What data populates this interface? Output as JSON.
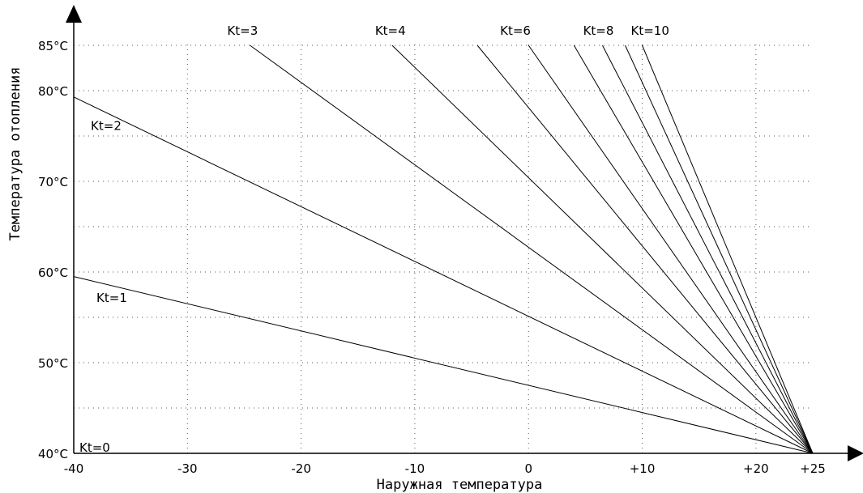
{
  "chart_data": {
    "type": "line",
    "title": "",
    "xlabel": "Наружная температура",
    "ylabel": "Температура отопления",
    "x_ticks": [
      {
        "value": -40,
        "label": "-40"
      },
      {
        "value": -30,
        "label": "-30"
      },
      {
        "value": -20,
        "label": "-20"
      },
      {
        "value": -10,
        "label": "-10"
      },
      {
        "value": 0,
        "label": "0"
      },
      {
        "value": 10,
        "label": "+10"
      },
      {
        "value": 20,
        "label": "+20"
      },
      {
        "value": 25,
        "label": "+25"
      }
    ],
    "y_ticks": [
      {
        "value": 40,
        "label": "40°C"
      },
      {
        "value": 50,
        "label": "50°C"
      },
      {
        "value": 60,
        "label": "60°C"
      },
      {
        "value": 70,
        "label": "70°C"
      },
      {
        "value": 80,
        "label": "80°C"
      },
      {
        "value": 85,
        "label": "85°C"
      }
    ],
    "xlim": [
      -40,
      25
    ],
    "ylim": [
      40,
      85
    ],
    "grid": true,
    "series": [
      {
        "name": "Kt=0",
        "x": [
          -40,
          25
        ],
        "y": [
          40,
          40
        ]
      },
      {
        "name": "Kt=1",
        "x": [
          -40,
          25
        ],
        "y": [
          59.5,
          40
        ]
      },
      {
        "name": "Kt=2",
        "x": [
          -40,
          25
        ],
        "y": [
          79.3,
          40
        ]
      },
      {
        "name": "Kt=3",
        "x": [
          -24.5,
          25
        ],
        "y": [
          85,
          40
        ]
      },
      {
        "name": "Kt=4",
        "x": [
          -12,
          25
        ],
        "y": [
          85,
          40
        ]
      },
      {
        "name": "",
        "x": [
          -4.5,
          25
        ],
        "y": [
          85,
          40
        ]
      },
      {
        "name": "Kt=6",
        "x": [
          0,
          25
        ],
        "y": [
          85,
          40
        ]
      },
      {
        "name": "",
        "x": [
          4,
          25
        ],
        "y": [
          85,
          40
        ]
      },
      {
        "name": "Kt=8",
        "x": [
          6.5,
          25
        ],
        "y": [
          85,
          40
        ]
      },
      {
        "name": "",
        "x": [
          8.5,
          25
        ],
        "y": [
          85,
          40
        ]
      },
      {
        "name": "Kt=10",
        "x": [
          10,
          25
        ],
        "y": [
          85,
          40
        ]
      }
    ],
    "labels": [
      {
        "text": "Kt=0",
        "x": -39.5,
        "y": 40
      },
      {
        "text": "Kt=1",
        "x": -38,
        "y": 56.5
      },
      {
        "text": "Kt=2",
        "x": -38.5,
        "y": 75.5
      },
      {
        "text": "Kt=3",
        "x": -26.5,
        "y": 86
      },
      {
        "text": "Kt=4",
        "x": -13.5,
        "y": 86
      },
      {
        "text": "Kt=6",
        "x": -2.5,
        "y": 86
      },
      {
        "text": "Kt=8",
        "x": 4.8,
        "y": 86
      },
      {
        "text": "Kt=10",
        "x": 9,
        "y": 86
      }
    ]
  }
}
